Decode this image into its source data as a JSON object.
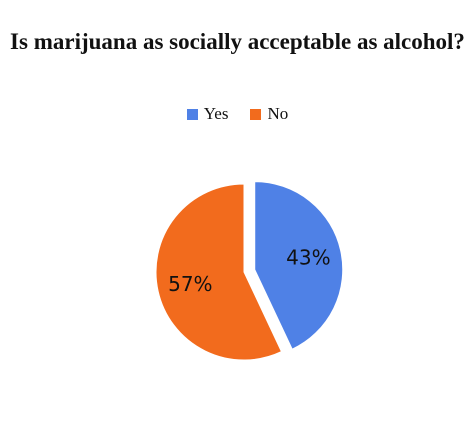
{
  "chart_data": {
    "type": "pie",
    "title": "Is marijuana as socially acceptable as alcohol?",
    "legend_position": "top",
    "categories": [
      "Yes",
      "No"
    ],
    "values": [
      43,
      57
    ],
    "labels": [
      "43%",
      "57%"
    ],
    "colors": [
      "#4f81e6",
      "#f26b1d"
    ],
    "exploded": "Yes"
  }
}
